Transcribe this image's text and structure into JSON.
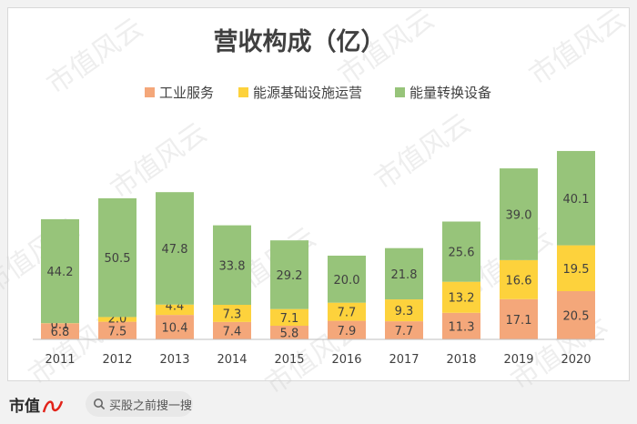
{
  "footer": {
    "brand": "市值",
    "search_text": "买股之前搜一搜"
  },
  "watermark_text": "市值风云",
  "colors": {
    "industrial": "#f4a77a",
    "infra": "#fdd23c",
    "energy": "#97c47a"
  },
  "chart_data": {
    "type": "bar",
    "stacked": true,
    "title": "营收构成（亿）",
    "xlabel": "",
    "ylabel": "",
    "categories": [
      "2011",
      "2012",
      "2013",
      "2014",
      "2015",
      "2016",
      "2017",
      "2018",
      "2019",
      "2020"
    ],
    "series": [
      {
        "name": "工业服务",
        "color": "#f4a77a",
        "values": [
          6.8,
          7.5,
          10.4,
          7.4,
          5.8,
          7.9,
          7.7,
          11.3,
          17.1,
          20.5
        ]
      },
      {
        "name": "能源基础设施运营",
        "color": "#fdd23c",
        "values": [
          0.1,
          2.0,
          4.4,
          7.3,
          7.1,
          7.7,
          9.3,
          13.2,
          16.6,
          19.5
        ]
      },
      {
        "name": "能量转换设备",
        "color": "#97c47a",
        "values": [
          44.2,
          50.5,
          47.8,
          33.8,
          29.2,
          20.0,
          21.8,
          25.6,
          39.0,
          40.1
        ]
      }
    ],
    "legend_position": "top",
    "gridlines": false
  }
}
